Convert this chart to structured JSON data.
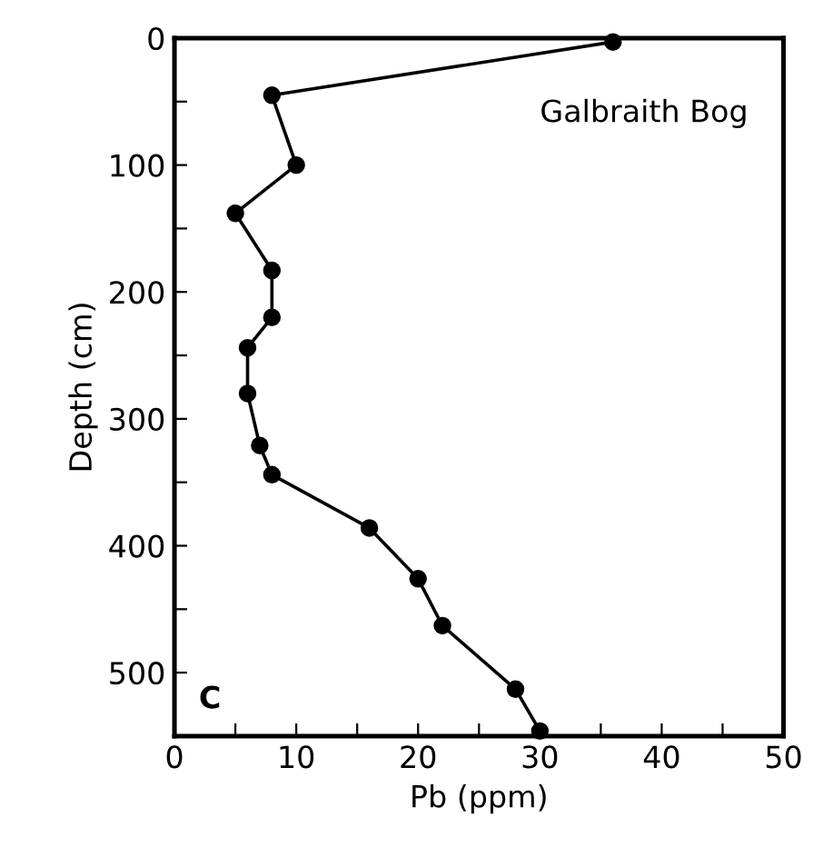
{
  "chart_data": {
    "type": "line",
    "xlabel": "Pb (ppm)",
    "ylabel": "Depth (cm)",
    "x": [
      36,
      8,
      10,
      5,
      8,
      8,
      6,
      6,
      7,
      8,
      16,
      20,
      22,
      28,
      30
    ],
    "series": [
      {
        "color": "#000000",
        "values": [
          3,
          45,
          100,
          138,
          183,
          220,
          244,
          280,
          321,
          344,
          386,
          426,
          463,
          513,
          546
        ]
      }
    ],
    "xlim": [
      0,
      50
    ],
    "ylim": [
      550,
      0
    ],
    "xticks": [
      0,
      {
        "value": 5,
        "label": null
      },
      10,
      {
        "value": 15,
        "label": null
      },
      20,
      {
        "value": 25,
        "label": null
      },
      30,
      {
        "value": 35,
        "label": null
      },
      40,
      {
        "value": 45,
        "label": null
      },
      50
    ],
    "yticks": [
      0,
      {
        "value": 50,
        "label": null
      },
      100,
      {
        "value": 150,
        "label": null
      },
      200,
      {
        "value": 250,
        "label": null
      },
      300,
      {
        "value": 350,
        "label": null
      },
      400,
      {
        "value": 450,
        "label": null
      },
      500
    ],
    "annotations": [
      "Galbraith Bog",
      "C"
    ],
    "marker": "circle",
    "line_style": "solid",
    "grid": false,
    "legend": false
  }
}
